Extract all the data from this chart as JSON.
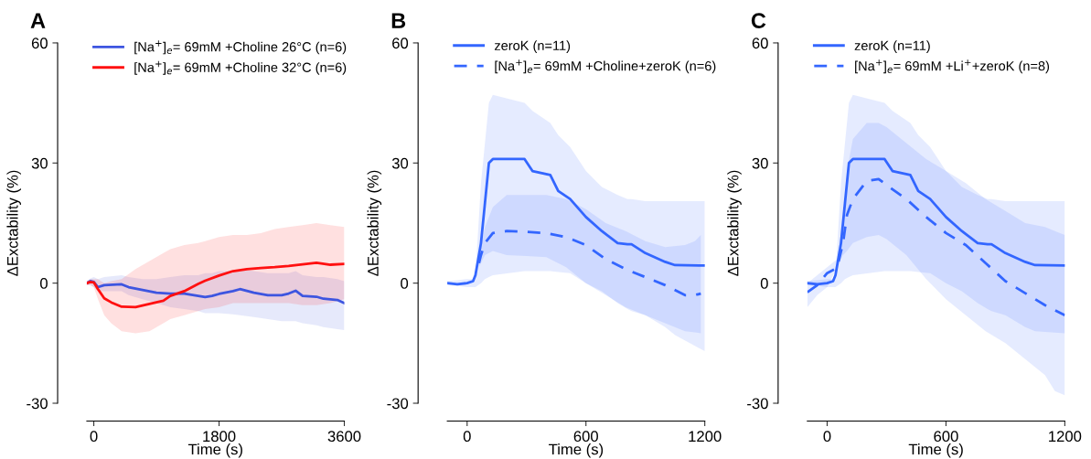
{
  "chart_data": [
    {
      "type": "line",
      "title": "A",
      "xlabel": "Time (s)",
      "ylabel": "ΔExctability (%)",
      "xlim": [
        -100,
        3600
      ],
      "xticks": [
        0,
        1800,
        3600
      ],
      "ylim": [
        -30,
        60
      ],
      "yticks": [
        -30,
        0,
        30,
        60
      ],
      "grid": false,
      "legend": "top left",
      "marker": "none",
      "series": [
        {
          "name": "[Na$^{+}$]$_{e}$= 69mM +Choline 26°C (n=6)",
          "color": "#3d55e0",
          "line_style": "solid",
          "x": [
            -100,
            -50,
            0,
            60,
            150,
            400,
            500,
            700,
            900,
            1100,
            1300,
            1500,
            1600,
            1700,
            1800,
            2000,
            2100,
            2300,
            2500,
            2700,
            2800,
            2900,
            3000,
            3200,
            3300,
            3500,
            3600
          ],
          "values": [
            0,
            0.5,
            0.3,
            -1,
            -0.5,
            -0.3,
            -1,
            -1.7,
            -2.4,
            -2.6,
            -2.6,
            -3.2,
            -3.5,
            -3.2,
            -2.7,
            -2,
            -1.5,
            -2.4,
            -3,
            -3,
            -2.6,
            -1.9,
            -3.2,
            -3.4,
            -3.9,
            -4.2,
            -5
          ],
          "lower": [
            -0.5,
            -0.5,
            -1,
            -2,
            -2,
            -2,
            -3,
            -4,
            -5,
            -6,
            -6.5,
            -7,
            -7.5,
            -7.5,
            -7.5,
            -7.8,
            -8,
            -8.5,
            -9,
            -9.5,
            -9.5,
            -9.5,
            -10,
            -10.5,
            -11,
            -11.5,
            -11.7
          ],
          "upper": [
            0.5,
            1.2,
            1.5,
            1,
            1.5,
            2,
            1.5,
            1,
            1,
            1.5,
            2,
            2,
            2.5,
            2.5,
            3,
            3,
            3.5,
            3,
            2.5,
            2.5,
            2.5,
            3,
            2,
            1.5,
            1.5,
            1,
            0.5
          ]
        },
        {
          "name": "[Na$^{+}$]$_{e}$= 69mM +Choline 32°C (n=6)",
          "color": "#ff1010",
          "line_style": "solid",
          "x": [
            -100,
            -50,
            0,
            60,
            150,
            250,
            400,
            600,
            800,
            1000,
            1100,
            1300,
            1500,
            1600,
            1800,
            2000,
            2200,
            2400,
            2600,
            2800,
            3000,
            3200,
            3400,
            3600
          ],
          "values": [
            0,
            0.3,
            0.2,
            -1.5,
            -3.8,
            -4.8,
            -5.9,
            -6,
            -5.2,
            -4.4,
            -3.2,
            -2,
            -0.2,
            0.6,
            1.9,
            3,
            3.5,
            3.8,
            4,
            4.3,
            4.7,
            5.1,
            4.6,
            4.8
          ],
          "lower": [
            -0.5,
            -0.5,
            -1,
            -4,
            -8,
            -10,
            -12,
            -12.5,
            -12,
            -10,
            -9,
            -8,
            -7,
            -6.5,
            -6,
            -5,
            -5,
            -5,
            -5,
            -5,
            -5.5,
            -5.5,
            -5,
            -4
          ],
          "upper": [
            0.5,
            1,
            1,
            1,
            0,
            0.5,
            1,
            3.5,
            5.5,
            7.5,
            8.5,
            9.5,
            10,
            10.5,
            11.5,
            12,
            12,
            12.5,
            13.5,
            14,
            14.5,
            15,
            14.5,
            14
          ]
        }
      ]
    },
    {
      "type": "line",
      "title": "B",
      "xlabel": "Time (s)",
      "ylabel": "ΔExctability (%)",
      "xlim": [
        -100,
        1200
      ],
      "xticks": [
        0,
        600,
        1200
      ],
      "ylim": [
        -30,
        60
      ],
      "yticks": [
        -30,
        0,
        30,
        60
      ],
      "grid": false,
      "legend": "top left",
      "marker": "none",
      "series": [
        {
          "name": "zeroK (n=11)",
          "color": "#3366ff",
          "line_style": "solid",
          "x": [
            -100,
            -50,
            0,
            30,
            42,
            70,
            90,
            110,
            130,
            290,
            330,
            420,
            460,
            520,
            600,
            680,
            760,
            810,
            830,
            900,
            1000,
            1050,
            1200
          ],
          "values": [
            0,
            -0.3,
            0,
            0.5,
            2,
            10,
            20,
            30,
            31,
            31,
            28,
            27,
            23,
            21,
            16.5,
            13,
            10,
            9.7,
            9.7,
            7.5,
            5.3,
            4.5,
            4.4
          ],
          "lower": [
            -0.5,
            -0.7,
            -1,
            -1,
            -1,
            0,
            1,
            1.5,
            2,
            3,
            3,
            3,
            2.8,
            2.5,
            0,
            -2,
            -5,
            -6.5,
            -7,
            -8,
            -11,
            -13,
            -17
          ],
          "upper": [
            0.5,
            0.7,
            1,
            1,
            2,
            25,
            35,
            45,
            47,
            45,
            43,
            40,
            37,
            34,
            28,
            24,
            22,
            21,
            21,
            20.5,
            20.5,
            20.5,
            20.5
          ]
        },
        {
          "name": "[Na$^{+}$]$_{e}$= 69mM +Choline+zeroK (n=6)",
          "color": "#3366ff",
          "line_style": "dashed",
          "x": [
            60,
            70,
            90,
            130,
            200,
            300,
            400,
            500,
            600,
            700,
            800,
            900,
            1000,
            1100,
            1150,
            1180
          ],
          "values": [
            5,
            7,
            10,
            12.5,
            13,
            12.8,
            12.5,
            11.5,
            9.5,
            6,
            3.5,
            1.5,
            -0.5,
            -3,
            -3,
            -2.6
          ],
          "lower": [
            4,
            5,
            7,
            8,
            7,
            6.8,
            6.5,
            4,
            0,
            -3,
            -6,
            -8,
            -10,
            -12,
            -12.3,
            -12.5
          ],
          "upper": [
            6,
            9,
            14,
            19,
            22,
            22,
            22,
            21,
            18.5,
            15,
            13,
            10.5,
            9,
            9.5,
            10.5,
            12
          ]
        }
      ]
    },
    {
      "type": "line",
      "title": "C",
      "xlabel": "Time (s)",
      "ylabel": "ΔExctability (%)",
      "xlim": [
        -100,
        1200
      ],
      "xticks": [
        0,
        600,
        1200
      ],
      "ylim": [
        -30,
        60
      ],
      "yticks": [
        -30,
        0,
        30,
        60
      ],
      "grid": false,
      "legend": "top left",
      "marker": "none",
      "series": [
        {
          "name": "zeroK (n=11)",
          "color": "#3366ff",
          "line_style": "solid",
          "x": [
            -100,
            -50,
            0,
            30,
            42,
            70,
            90,
            110,
            130,
            290,
            330,
            420,
            460,
            520,
            600,
            680,
            760,
            810,
            830,
            900,
            1000,
            1050,
            1200
          ],
          "values": [
            0,
            -0.3,
            0,
            0.5,
            2,
            10,
            20,
            30,
            31,
            31,
            28,
            27,
            23,
            21,
            16.5,
            13,
            10,
            9.7,
            9.7,
            7.5,
            5.3,
            4.5,
            4.4
          ],
          "lower": [
            -0.5,
            -0.7,
            -1,
            -1,
            -1,
            0,
            1,
            1.5,
            2,
            3,
            3,
            3,
            2.8,
            2.5,
            0,
            -2,
            -5,
            -6.5,
            -7,
            -8,
            -11,
            -12,
            -12.5
          ],
          "upper": [
            0.5,
            0.7,
            1,
            1,
            2,
            25,
            35,
            45,
            47,
            45,
            43,
            40,
            37,
            34,
            28,
            24,
            22,
            21,
            21,
            20.5,
            20.5,
            20.5,
            20.5
          ]
        },
        {
          "name": "[Na$^{+}$]$_{e}$= 69mM +Li$^{+}$+zeroK (n=8)",
          "color": "#3366ff",
          "line_style": "dashed",
          "x": [
            -100,
            -50,
            0,
            50,
            80,
            100,
            130,
            200,
            260,
            300,
            400,
            500,
            600,
            700,
            800,
            900,
            1000,
            1100,
            1150,
            1200
          ],
          "values": [
            -2.3,
            -0.5,
            2.5,
            3.8,
            10,
            17,
            21,
            25.5,
            26,
            24.5,
            21,
            16.5,
            12.5,
            9.5,
            5,
            0.5,
            -2.5,
            -5.5,
            -6.8,
            -8
          ],
          "lower": [
            -6,
            -3,
            -1,
            4,
            7,
            8,
            10,
            11.5,
            12,
            11,
            7,
            1,
            -4,
            -8,
            -12,
            -15,
            -19,
            -23,
            -27,
            -28
          ],
          "upper": [
            0,
            2,
            4,
            6,
            15,
            28,
            36,
            40,
            40,
            39,
            35,
            31,
            28,
            25,
            21,
            18,
            15,
            14,
            13,
            12
          ]
        }
      ]
    }
  ]
}
